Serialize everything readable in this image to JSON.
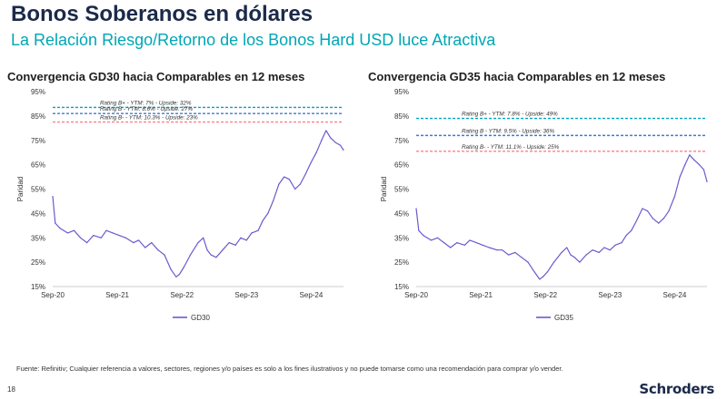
{
  "page": {
    "title": "Bonos Soberanos en dólares",
    "subtitle": "La Relación Riesgo/Retorno de los Bonos Hard USD luce Atractiva",
    "footnote": "Fuente: Refinitiv; Cualquier referencia a valores, sectores, regiones y/o países es solo a los fines ilustrativos y no puede tomarse como una recomendación para comprar y/o vender.",
    "page_number": "18",
    "brand": "Schroders"
  },
  "colors": {
    "title": "#1b2a4a",
    "subtitle": "#00a6b5",
    "series": "#6a5acd",
    "rating_b_plus": "#00a3c4",
    "rating_b": "#3a7bd5",
    "rating_b_minus": "#ff7f8e"
  },
  "chart_data": [
    {
      "type": "line",
      "title": "Convergencia GD30 hacia Comparables en 12 meses",
      "ylabel": "Paridad",
      "xlabel": "",
      "ylim": [
        15,
        95
      ],
      "yticks": [
        15,
        25,
        35,
        45,
        55,
        65,
        75,
        85,
        95
      ],
      "ytick_labels": [
        "15%",
        "25%",
        "35%",
        "45%",
        "55%",
        "65%",
        "75%",
        "85%",
        "95%"
      ],
      "xlim": [
        2020.67,
        2025.17
      ],
      "xticks": [
        2020.67,
        2021.67,
        2022.67,
        2023.67,
        2024.67
      ],
      "xtick_labels": [
        "Sep-20",
        "Sep-21",
        "Sep-22",
        "Sep-23",
        "Sep-24"
      ],
      "legend": "GD30",
      "series": [
        {
          "name": "GD30",
          "x": [
            2020.67,
            2020.71,
            2020.78,
            2020.9,
            2021.0,
            2021.1,
            2021.2,
            2021.3,
            2021.42,
            2021.5,
            2021.6,
            2021.7,
            2021.8,
            2021.92,
            2022.0,
            2022.1,
            2022.2,
            2022.3,
            2022.4,
            2022.5,
            2022.58,
            2022.63,
            2022.7,
            2022.8,
            2022.92,
            2023.0,
            2023.06,
            2023.12,
            2023.2,
            2023.3,
            2023.4,
            2023.5,
            2023.58,
            2023.67,
            2023.75,
            2023.85,
            2023.92,
            2024.0,
            2024.08,
            2024.17,
            2024.25,
            2024.33,
            2024.42,
            2024.5,
            2024.58,
            2024.67,
            2024.75,
            2024.83,
            2024.9,
            2024.97,
            2025.05,
            2025.12,
            2025.17
          ],
          "values": [
            52,
            41,
            39,
            37,
            38,
            35,
            33,
            36,
            35,
            38,
            37,
            36,
            35,
            33,
            34,
            31,
            33,
            30,
            28,
            22,
            19,
            20,
            23,
            28,
            33,
            35,
            30,
            28,
            27,
            30,
            33,
            32,
            35,
            34,
            37,
            38,
            42,
            45,
            50,
            57,
            60,
            59,
            55,
            57,
            61,
            66,
            70,
            75,
            79,
            76,
            74,
            73,
            71
          ]
        }
      ],
      "reference_lines": [
        {
          "label": "Rating B+ - YTM: 7% - Upside: 32%",
          "value": 88.5,
          "color_key": "rating_b_plus"
        },
        {
          "label": "Rating B - YTM: 8.6% - Upside: 27%",
          "value": 86.0,
          "color_key": "rating_b"
        },
        {
          "label": "Rating B- - YTM: 10.3% - Upside: 23%",
          "value": 82.5,
          "color_key": "rating_b_minus"
        }
      ]
    },
    {
      "type": "line",
      "title": "Convergencia GD35 hacia Comparables en 12 meses",
      "ylabel": "Paridad",
      "xlabel": "",
      "ylim": [
        15,
        95
      ],
      "yticks": [
        15,
        25,
        35,
        45,
        55,
        65,
        75,
        85,
        95
      ],
      "ytick_labels": [
        "15%",
        "25%",
        "35%",
        "45%",
        "55%",
        "65%",
        "75%",
        "85%",
        "95%"
      ],
      "xlim": [
        2020.67,
        2025.17
      ],
      "xticks": [
        2020.67,
        2021.67,
        2022.67,
        2023.67,
        2024.67
      ],
      "xtick_labels": [
        "Sep-20",
        "Sep-21",
        "Sep-22",
        "Sep-23",
        "Sep-24"
      ],
      "legend": "GD35",
      "series": [
        {
          "name": "GD35",
          "x": [
            2020.67,
            2020.71,
            2020.78,
            2020.9,
            2021.0,
            2021.1,
            2021.2,
            2021.3,
            2021.42,
            2021.5,
            2021.6,
            2021.7,
            2021.8,
            2021.92,
            2022.0,
            2022.1,
            2022.2,
            2022.3,
            2022.4,
            2022.5,
            2022.58,
            2022.63,
            2022.7,
            2022.8,
            2022.92,
            2023.0,
            2023.06,
            2023.12,
            2023.2,
            2023.3,
            2023.4,
            2023.5,
            2023.58,
            2023.67,
            2023.75,
            2023.85,
            2023.92,
            2024.0,
            2024.08,
            2024.17,
            2024.25,
            2024.33,
            2024.42,
            2024.5,
            2024.58,
            2024.67,
            2024.75,
            2024.83,
            2024.9,
            2024.97,
            2025.05,
            2025.12,
            2025.17
          ],
          "values": [
            47,
            38,
            36,
            34,
            35,
            33,
            31,
            33,
            32,
            34,
            33,
            32,
            31,
            30,
            30,
            28,
            29,
            27,
            25,
            21,
            18,
            19,
            21,
            25,
            29,
            31,
            28,
            27,
            25,
            28,
            30,
            29,
            31,
            30,
            32,
            33,
            36,
            38,
            42,
            47,
            46,
            43,
            41,
            43,
            46,
            52,
            60,
            65,
            69,
            67,
            65,
            63,
            58
          ]
        }
      ],
      "reference_lines": [
        {
          "label": "Rating B+ - YTM: 7.8% - Upside: 49%",
          "value": 84.0,
          "color_key": "rating_b_plus"
        },
        {
          "label": "Rating B - YTM: 9.5% - Upside: 36%",
          "value": 77.0,
          "color_key": "rating_b"
        },
        {
          "label": "Rating B- - YTM: 11.1% - Upside: 25%",
          "value": 70.5,
          "color_key": "rating_b_minus"
        }
      ]
    }
  ]
}
